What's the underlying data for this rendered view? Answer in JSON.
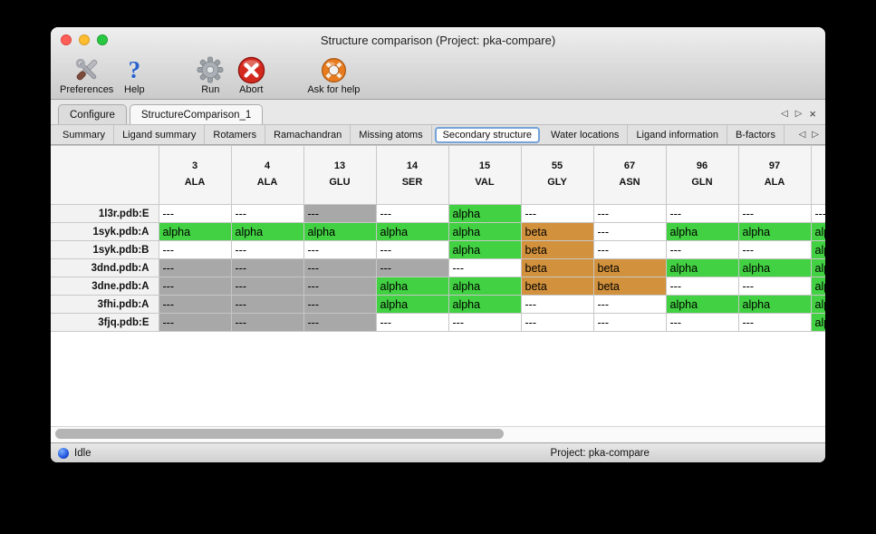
{
  "colors": {
    "alpha_green": "#42d142",
    "beta_orange": "#d2913c",
    "missing_gray": "#a8a8a8"
  },
  "window": {
    "title": "Structure comparison (Project: pka-compare)"
  },
  "toolbar": {
    "items": [
      {
        "label": "Preferences"
      },
      {
        "label": "Help"
      },
      {
        "label": "Run"
      },
      {
        "label": "Abort"
      },
      {
        "label": "Ask for help"
      }
    ]
  },
  "tabs": {
    "items": [
      {
        "label": "Configure",
        "selected": false
      },
      {
        "label": "StructureComparison_1",
        "selected": true
      }
    ],
    "nav_left": "◁",
    "nav_right": "▷",
    "close": "×"
  },
  "subtabs": {
    "items": [
      {
        "label": "Summary",
        "selected": false
      },
      {
        "label": "Ligand summary",
        "selected": false
      },
      {
        "label": "Rotamers",
        "selected": false
      },
      {
        "label": "Ramachandran",
        "selected": false
      },
      {
        "label": "Missing atoms",
        "selected": false
      },
      {
        "label": "Secondary structure",
        "selected": true
      },
      {
        "label": "Water locations",
        "selected": false
      },
      {
        "label": "Ligand information",
        "selected": false
      },
      {
        "label": "B-factors",
        "selected": false
      }
    ],
    "nav_left": "◁",
    "nav_right": "▷"
  },
  "table": {
    "columns": [
      {
        "num": "3",
        "res": "ALA"
      },
      {
        "num": "4",
        "res": "ALA"
      },
      {
        "num": "13",
        "res": "GLU"
      },
      {
        "num": "14",
        "res": "SER"
      },
      {
        "num": "15",
        "res": "VAL"
      },
      {
        "num": "55",
        "res": "GLY"
      },
      {
        "num": "67",
        "res": "ASN"
      },
      {
        "num": "96",
        "res": "GLN"
      },
      {
        "num": "97",
        "res": "ALA"
      },
      {
        "num": "",
        "res": "",
        "partial": true
      }
    ],
    "rows": [
      {
        "label": "1l3r.pdb:E",
        "cells": [
          {
            "text": "---",
            "type": "plain"
          },
          {
            "text": "---",
            "type": "plain"
          },
          {
            "text": "---",
            "type": "gray"
          },
          {
            "text": "---",
            "type": "plain"
          },
          {
            "text": "alpha",
            "type": "alpha"
          },
          {
            "text": "---",
            "type": "plain"
          },
          {
            "text": "---",
            "type": "plain"
          },
          {
            "text": "---",
            "type": "plain"
          },
          {
            "text": "---",
            "type": "plain"
          },
          {
            "text": "---",
            "type": "plain"
          }
        ]
      },
      {
        "label": "1syk.pdb:A",
        "cells": [
          {
            "text": "alpha",
            "type": "alpha"
          },
          {
            "text": "alpha",
            "type": "alpha"
          },
          {
            "text": "alpha",
            "type": "alpha"
          },
          {
            "text": "alpha",
            "type": "alpha"
          },
          {
            "text": "alpha",
            "type": "alpha"
          },
          {
            "text": "beta",
            "type": "beta"
          },
          {
            "text": "---",
            "type": "plain"
          },
          {
            "text": "alpha",
            "type": "alpha"
          },
          {
            "text": "alpha",
            "type": "alpha"
          },
          {
            "text": "alpha",
            "type": "alpha"
          }
        ]
      },
      {
        "label": "1syk.pdb:B",
        "cells": [
          {
            "text": "---",
            "type": "plain"
          },
          {
            "text": "---",
            "type": "plain"
          },
          {
            "text": "---",
            "type": "plain"
          },
          {
            "text": "---",
            "type": "plain"
          },
          {
            "text": "alpha",
            "type": "alpha"
          },
          {
            "text": "beta",
            "type": "beta"
          },
          {
            "text": "---",
            "type": "plain"
          },
          {
            "text": "---",
            "type": "plain"
          },
          {
            "text": "---",
            "type": "plain"
          },
          {
            "text": "alpha",
            "type": "alpha"
          }
        ]
      },
      {
        "label": "3dnd.pdb:A",
        "cells": [
          {
            "text": "---",
            "type": "gray"
          },
          {
            "text": "---",
            "type": "gray"
          },
          {
            "text": "---",
            "type": "gray"
          },
          {
            "text": "---",
            "type": "gray"
          },
          {
            "text": "---",
            "type": "plain"
          },
          {
            "text": "beta",
            "type": "beta"
          },
          {
            "text": "beta",
            "type": "beta"
          },
          {
            "text": "alpha",
            "type": "alpha"
          },
          {
            "text": "alpha",
            "type": "alpha"
          },
          {
            "text": "alpha",
            "type": "alpha"
          }
        ]
      },
      {
        "label": "3dne.pdb:A",
        "cells": [
          {
            "text": "---",
            "type": "gray"
          },
          {
            "text": "---",
            "type": "gray"
          },
          {
            "text": "---",
            "type": "gray"
          },
          {
            "text": "alpha",
            "type": "alpha"
          },
          {
            "text": "alpha",
            "type": "alpha"
          },
          {
            "text": "beta",
            "type": "beta"
          },
          {
            "text": "beta",
            "type": "beta"
          },
          {
            "text": "---",
            "type": "plain"
          },
          {
            "text": "---",
            "type": "plain"
          },
          {
            "text": "alpha",
            "type": "alpha"
          }
        ]
      },
      {
        "label": "3fhi.pdb:A",
        "cells": [
          {
            "text": "---",
            "type": "gray"
          },
          {
            "text": "---",
            "type": "gray"
          },
          {
            "text": "---",
            "type": "gray"
          },
          {
            "text": "alpha",
            "type": "alpha"
          },
          {
            "text": "alpha",
            "type": "alpha"
          },
          {
            "text": "---",
            "type": "plain"
          },
          {
            "text": "---",
            "type": "plain"
          },
          {
            "text": "alpha",
            "type": "alpha"
          },
          {
            "text": "alpha",
            "type": "alpha"
          },
          {
            "text": "alpha",
            "type": "alpha"
          }
        ]
      },
      {
        "label": "3fjq.pdb:E",
        "cells": [
          {
            "text": "---",
            "type": "gray"
          },
          {
            "text": "---",
            "type": "gray"
          },
          {
            "text": "---",
            "type": "gray"
          },
          {
            "text": "---",
            "type": "plain"
          },
          {
            "text": "---",
            "type": "plain"
          },
          {
            "text": "---",
            "type": "plain"
          },
          {
            "text": "---",
            "type": "plain"
          },
          {
            "text": "---",
            "type": "plain"
          },
          {
            "text": "---",
            "type": "plain"
          },
          {
            "text": "alpha",
            "type": "alpha"
          }
        ]
      }
    ]
  },
  "statusbar": {
    "status": "Idle",
    "project": "Project: pka-compare"
  }
}
